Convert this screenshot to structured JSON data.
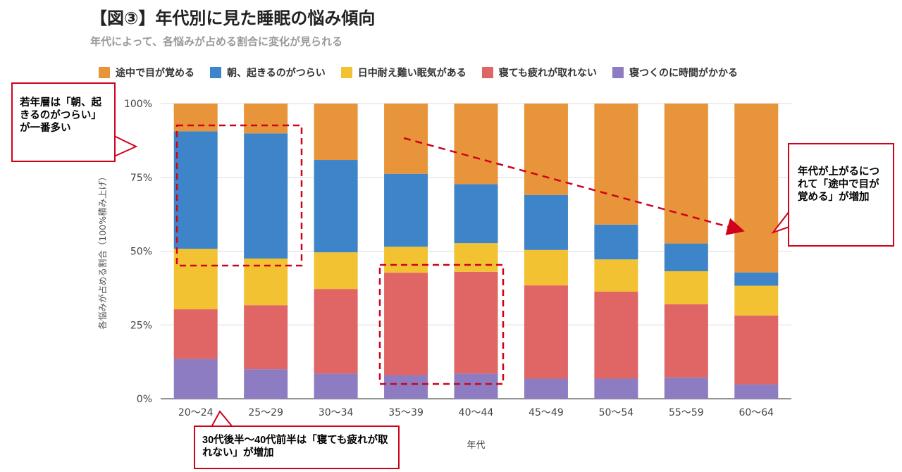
{
  "title": "【図③】年代別に見た睡眠の悩み傾向",
  "subtitle": "年代によって、各悩みが占める割合に変化が見られる",
  "legend": [
    {
      "label": "途中で目が覚める",
      "color": "#E8943A"
    },
    {
      "label": "朝、起きるのがつらい",
      "color": "#3E84C8"
    },
    {
      "label": "日中耐え難い眠気がある",
      "color": "#F2C232"
    },
    {
      "label": "寝ても疲れが取れない",
      "color": "#E06666"
    },
    {
      "label": "寝つくのに時間がかかる",
      "color": "#8E7CC3"
    }
  ],
  "chart_data": {
    "type": "bar",
    "stacked": true,
    "normalized": "100%",
    "title": "【図③】年代別に見た睡眠の悩み傾向",
    "subtitle": "年代によって、各悩みが占める割合に変化が見られる",
    "xlabel": "年代",
    "ylabel": "各悩みが占める割合（100%積み上げ）",
    "ylim": [
      0,
      100
    ],
    "yticks": [
      "0%",
      "25%",
      "50%",
      "75%",
      "100%"
    ],
    "ytick_values": [
      0,
      25,
      50,
      75,
      100
    ],
    "categories": [
      "20～24",
      "25～29",
      "30～34",
      "35～39",
      "40～44",
      "45～49",
      "50～54",
      "55～59",
      "60～64"
    ],
    "series": [
      {
        "name": "寝つくのに時間がかかる",
        "values": [
          13.5,
          10,
          8.5,
          8,
          8.5,
          6.8,
          6.8,
          7.2,
          4.9
        ]
      },
      {
        "name": "寝ても疲れが取れない",
        "values": [
          16.8,
          21.7,
          28.7,
          34.7,
          34.5,
          31.6,
          29.5,
          24.8,
          23.3
        ]
      },
      {
        "name": "日中耐え難い眠気がある",
        "values": [
          20.5,
          15.8,
          12.4,
          8.8,
          9.7,
          12,
          10.9,
          11.2,
          10.1
        ]
      },
      {
        "name": "朝、起きるのがつらい",
        "values": [
          39.8,
          42.4,
          31.3,
          24.7,
          20,
          18.6,
          11.8,
          9.4,
          4.5
        ]
      },
      {
        "name": "途中で目が覚める",
        "values": [
          9.4,
          10.1,
          19.1,
          23.8,
          27.3,
          31,
          41,
          47.4,
          57.2
        ]
      }
    ],
    "grid": true,
    "legend_position": "top"
  },
  "annotations": {
    "callout_young": "若年層は「朝、起きるのがつらい」が一番多い",
    "callout_older": "年代が上がるにつれて「途中で目が覚める」が増加",
    "callout_middle": "30代後半～40代前半は「寝ても疲れが取れない」が増加"
  },
  "annotation_color": "#D0021B"
}
